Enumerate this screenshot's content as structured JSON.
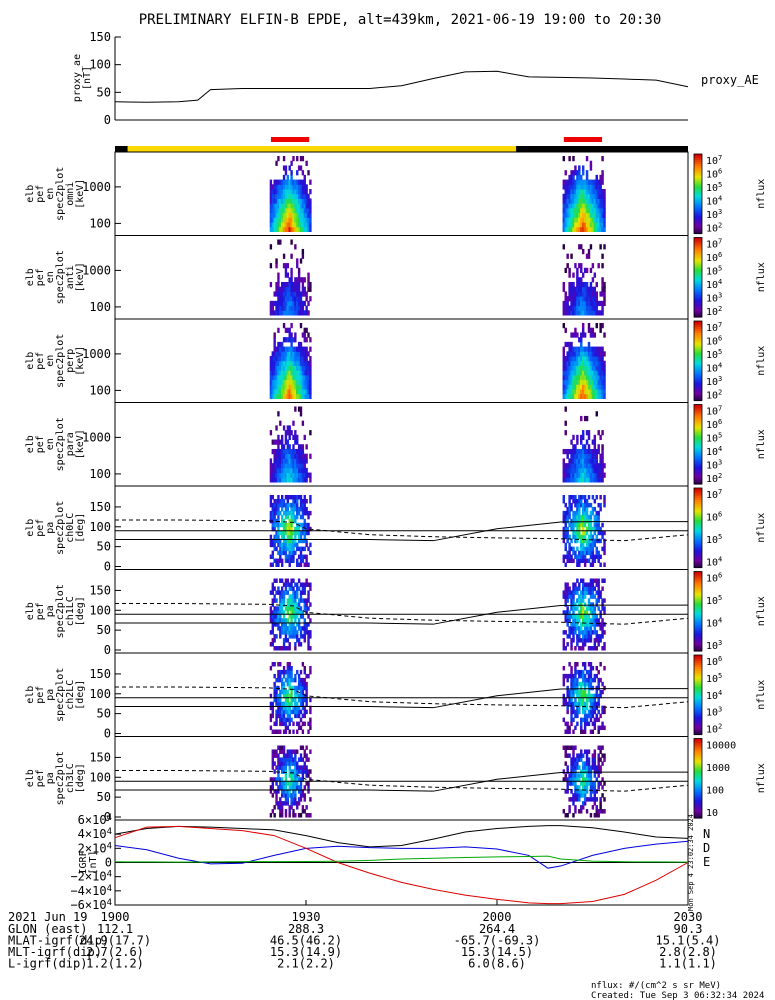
{
  "title": "PRELIMINARY ELFIN-B EPDE, alt=439km, 2021-06-19 19:00 to 20:30",
  "time_axis": {
    "start_min": 0,
    "end_min": 90
  },
  "ae_panel": {
    "ylabel": "proxy_ae\n[nT]",
    "legend": "proxy_AE",
    "ylim": [
      0,
      150
    ],
    "ticks": [
      "150",
      "100",
      "50",
      "0"
    ],
    "tick_values": [
      150,
      100,
      50,
      0
    ],
    "x": [
      0,
      5,
      10,
      13,
      15,
      20,
      30,
      40,
      45,
      50,
      55,
      60,
      65,
      70,
      75,
      80,
      85,
      90
    ],
    "y": [
      33,
      32,
      33,
      36,
      55,
      57,
      57,
      57,
      62,
      75,
      87,
      88,
      78,
      77,
      76,
      74,
      72,
      60
    ]
  },
  "status_bar": {
    "segments": [
      {
        "from": 0,
        "to": 2,
        "color": "#000000"
      },
      {
        "from": 2,
        "to": 63,
        "color": "#ffd700"
      },
      {
        "from": 63,
        "to": 90,
        "color": "#000000"
      }
    ],
    "science_zones": [
      {
        "from": 24.5,
        "to": 30.5
      },
      {
        "from": 70.5,
        "to": 76.5
      }
    ],
    "zone_color": "#ee0000"
  },
  "energy_panels": [
    {
      "ylabel": "elb\npef\nen\nspec2plot\nomni\n[keV]",
      "ticks": [
        "1000",
        "100"
      ],
      "cb_top": "10^7",
      "cb_ticks": [
        "10^7",
        "10^6",
        "10^5",
        "10^4",
        "10^3",
        "10^2"
      ],
      "cb_label": "nflux",
      "intensity": 1.0
    },
    {
      "ylabel": "elb\npef\nen\nspec2plot\nanti\n[keV]",
      "ticks": [
        "1000",
        "100"
      ],
      "cb_top": "10^7",
      "cb_ticks": [
        "10^7",
        "10^6",
        "10^5",
        "10^4",
        "10^3",
        "10^2"
      ],
      "cb_label": "nflux",
      "intensity": 0.45
    },
    {
      "ylabel": "elb\npef\nen\nspec2plot\nperp\n[keV]",
      "ticks": [
        "1000",
        "100"
      ],
      "cb_top": "10^7",
      "cb_ticks": [
        "10^7",
        "10^6",
        "10^5",
        "10^4",
        "10^3",
        "10^2"
      ],
      "cb_label": "nflux",
      "intensity": 0.95
    },
    {
      "ylabel": "elb\npef\nen\nspec2plot\npara\n[keV]",
      "ticks": [
        "1000",
        "100"
      ],
      "cb_top": "10^7",
      "cb_ticks": [
        "10^7",
        "10^6",
        "10^5",
        "10^4",
        "10^3",
        "10^2"
      ],
      "cb_label": "nflux",
      "intensity": 0.55
    }
  ],
  "pitch_panels": [
    {
      "ylabel": "elb\npef\npa\nspec2plot\nch0LC\n[deg]",
      "cb_ticks": [
        "10^7",
        "10^6",
        "10^5",
        "10^4"
      ],
      "cb_label": "nflux"
    },
    {
      "ylabel": "elb\npef\npa\nspec2plot\nch1LC\n[deg]",
      "cb_ticks": [
        "10^6",
        "10^5",
        "10^4",
        "10^3"
      ],
      "cb_label": "nflux"
    },
    {
      "ylabel": "elb\npef\npa\nspec2plot\nch2LC\n[deg]",
      "cb_ticks": [
        "10^6",
        "10^5",
        "10^4",
        "10^3",
        "10^2"
      ],
      "cb_label": "nflux"
    },
    {
      "ylabel": "elb\npef\npa\nspec2plot\nch3LC\n[deg]",
      "cb_ticks": [
        "10000",
        "1000",
        "100",
        "10"
      ],
      "cb_label": "nflux"
    }
  ],
  "pitch_ticks": [
    "150",
    "100",
    "50",
    "0"
  ],
  "pitch_tick_values": [
    150,
    100,
    50,
    0
  ],
  "lc_lines": {
    "x": [
      0,
      10,
      24,
      28,
      30,
      40,
      50,
      60,
      70,
      75,
      80,
      90
    ],
    "solid_a": [
      90,
      90,
      90,
      90,
      90,
      90,
      90,
      90,
      90,
      90,
      90,
      90
    ],
    "solid_b": [
      68,
      68,
      68,
      68,
      68,
      68,
      65,
      95,
      112,
      113,
      113,
      113
    ],
    "dash_a": [
      117,
      117,
      115,
      111,
      95,
      80,
      75,
      72,
      70,
      67,
      65,
      80
    ]
  },
  "igrf_panel": {
    "ylabel": "IGRF\n[nT]",
    "ylim": [
      -60000,
      60000
    ],
    "ticks": [
      "6×10^4",
      "4×10^4",
      "2×10^4",
      "0",
      "−2×10^4",
      "−4×10^4",
      "−6×10^4"
    ],
    "tick_values": [
      60000,
      40000,
      20000,
      0,
      -20000,
      -40000,
      -60000
    ],
    "x": [
      0,
      5,
      10,
      15,
      20,
      25,
      30,
      35,
      40,
      45,
      50,
      55,
      60,
      65,
      68,
      70,
      75,
      80,
      85,
      90
    ],
    "N": [
      40000,
      48000,
      51000,
      50000,
      48000,
      46000,
      38000,
      28000,
      22000,
      24000,
      33000,
      43000,
      48000,
      51000,
      52000,
      52000,
      49000,
      43000,
      36000,
      34000
    ],
    "E": [
      24000,
      18000,
      6000,
      -2000,
      -1000,
      10000,
      20000,
      23000,
      21000,
      20000,
      20000,
      22000,
      19000,
      10000,
      -8000,
      -5000,
      10000,
      20000,
      26000,
      30000
    ],
    "D": [
      35000,
      50000,
      51000,
      48000,
      45000,
      38000,
      20000,
      0,
      -15000,
      -28000,
      -38000,
      -46000,
      -52000,
      -57000,
      -58000,
      -58000,
      -55000,
      -45000,
      -25000,
      0
    ],
    "green": [
      1000,
      800,
      500,
      800,
      1200,
      1200,
      1500,
      1800,
      3000,
      5000,
      6000,
      7000,
      8000,
      8500,
      9000,
      5000,
      2000,
      1000,
      800,
      500
    ],
    "legend": [
      "N",
      "D",
      "E"
    ],
    "colors": {
      "N": "#000000",
      "E": "#0000dd",
      "D": "#dd0000",
      "green": "#00aa00"
    },
    "stamp": "Mon Sep  4 23:02:34 2024"
  },
  "x_axis": {
    "tick_minutes": [
      0,
      30,
      60,
      90
    ],
    "tick_labels": [
      "1900",
      "1930",
      "2000",
      "2030"
    ],
    "header": "2021 Jun 19",
    "rows": [
      {
        "label": "GLON (east)",
        "values": [
          "112.1",
          "288.3",
          "264.4",
          "90.3"
        ]
      },
      {
        "label": "MLAT-igrf(dip)",
        "values": [
          "24.9(17.7)",
          "46.5(46.2)",
          "-65.7(-69.3)",
          "15.1(5.4)"
        ]
      },
      {
        "label": "MLT-igrf(dip)",
        "values": [
          "2.7(2.6)",
          "15.3(14.9)",
          "15.3(14.5)",
          "2.8(2.8)"
        ]
      },
      {
        "label": "L-igrf(dip)",
        "values": [
          "1.2(1.2)",
          "2.1(2.2)",
          "6.0(8.6)",
          "1.1(1.1)"
        ]
      }
    ]
  },
  "footer": {
    "units": "nflux: #/(cm^2 s sr MeV)",
    "created": "Created: Tue Sep  3 06:32:34 2024"
  },
  "colors": {
    "accent_red": "#ee0000",
    "accent_yellow": "#ffd700"
  }
}
